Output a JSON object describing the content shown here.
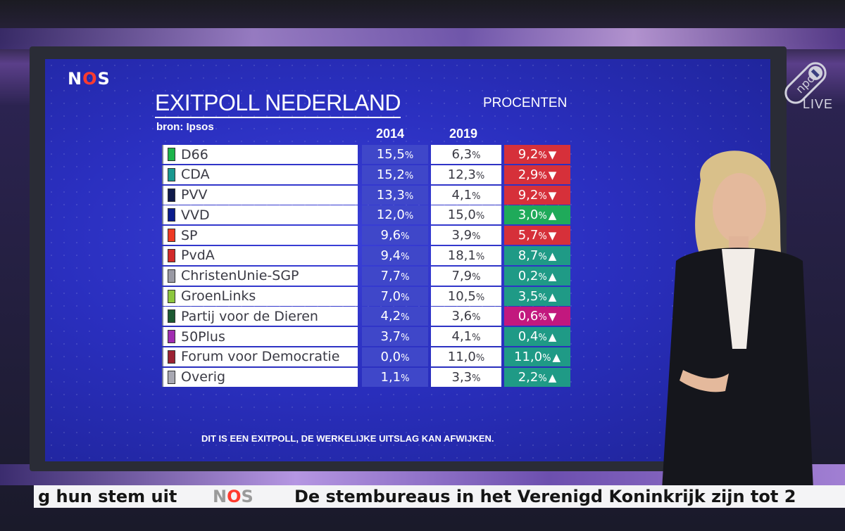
{
  "broadcaster": {
    "logo_text": [
      "N",
      "O",
      "S"
    ],
    "channel_badge": "npo",
    "live_label": "LIVE"
  },
  "colors": {
    "screen_blue": "#2a2fbf",
    "col_2014": "#3f47c9",
    "down_red": "#d6303a",
    "up_green": "#1faa5a",
    "up_teal": "#1f9a86",
    "down_magenta": "#c2187e"
  },
  "chart_data": {
    "type": "table",
    "title": "EXITPOLL NEDERLAND",
    "subtitle": "bron: Ipsos",
    "unit_label": "PROCENTEN",
    "columns": [
      "2014",
      "2019"
    ],
    "rows": [
      {
        "party": "D66",
        "swatch": "#1cb34a",
        "v2014": "15,5",
        "v2019": "6,3",
        "change": "9,2",
        "direction": "down",
        "change_color": "#d6303a"
      },
      {
        "party": "CDA",
        "swatch": "#19988f",
        "v2014": "15,2",
        "v2019": "12,3",
        "change": "2,9",
        "direction": "down",
        "change_color": "#d6303a"
      },
      {
        "party": "PVV",
        "swatch": "#101a4a",
        "v2014": "13,3",
        "v2019": "4,1",
        "change": "9,2",
        "direction": "down",
        "change_color": "#d6303a"
      },
      {
        "party": "VVD",
        "swatch": "#0a1c8c",
        "v2014": "12,0",
        "v2019": "15,0",
        "change": "3,0",
        "direction": "up",
        "change_color": "#1faa5a"
      },
      {
        "party": "SP",
        "swatch": "#ee3a24",
        "v2014": "9,6",
        "v2019": "3,9",
        "change": "5,7",
        "direction": "down",
        "change_color": "#d6303a"
      },
      {
        "party": "PvdA",
        "swatch": "#d22a2a",
        "v2014": "9,4",
        "v2019": "18,1",
        "change": "8,7",
        "direction": "up",
        "change_color": "#1f9a86"
      },
      {
        "party": "ChristenUnie-SGP",
        "swatch": "#9a9aa4",
        "v2014": "7,7",
        "v2019": "7,9",
        "change": "0,2",
        "direction": "up",
        "change_color": "#1f9a86"
      },
      {
        "party": "GroenLinks",
        "swatch": "#8cc63e",
        "v2014": "7,0",
        "v2019": "10,5",
        "change": "3,5",
        "direction": "up",
        "change_color": "#1f9a86"
      },
      {
        "party": "Partij voor de Dieren",
        "swatch": "#1d5a33",
        "v2014": "4,2",
        "v2019": "3,6",
        "change": "0,6",
        "direction": "down",
        "change_color": "#c2187e"
      },
      {
        "party": "50Plus",
        "swatch": "#a02cb0",
        "v2014": "3,7",
        "v2019": "4,1",
        "change": "0,4",
        "direction": "up",
        "change_color": "#1f9a86"
      },
      {
        "party": "Forum voor Democratie",
        "swatch": "#9b2233",
        "v2014": "0,0",
        "v2019": "11,0",
        "change": "11,0",
        "direction": "up",
        "change_color": "#1f9a86"
      },
      {
        "party": "Overig",
        "swatch": "#a8a8b2",
        "v2014": "1,1",
        "v2019": "3,3",
        "change": "2,2",
        "direction": "up",
        "change_color": "#1f9a86"
      }
    ],
    "percent_sign": "%",
    "arrow_up": "▲",
    "arrow_down": "▼",
    "footnote": "DIT IS EEN EXITPOLL, DE WERKELIJKE UITSLAG KAN AFWIJKEN."
  },
  "ticker": {
    "left_text": "g hun stem uit",
    "logo_text": [
      "N",
      "O",
      "S"
    ],
    "right_text": "De stembureaus in het Verenigd Koninkrijk zijn tot 2"
  }
}
